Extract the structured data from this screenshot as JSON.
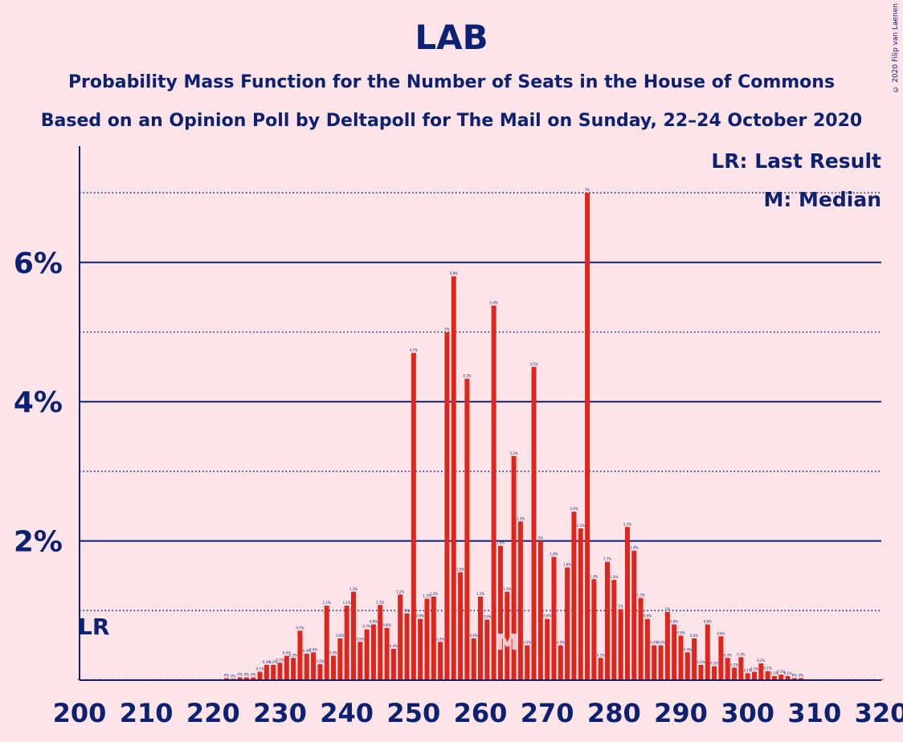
{
  "title": "LAB",
  "subtitle1": "Probability Mass Function for the Number of Seats in the House of Commons",
  "subtitle2": "Based on an Opinion Poll by Deltapoll for The Mail on Sunday, 22–24 October 2020",
  "copyright": "© 2020 Filip van Laenen",
  "legend": {
    "lr": "LR: Last Result",
    "median": "M: Median"
  },
  "colors": {
    "bar": "#e0261c",
    "axis": "#0d2173",
    "background": "#fde4e8",
    "median_mark": "#fbc7cc"
  },
  "chart_data": {
    "type": "bar",
    "xlim": [
      200,
      320
    ],
    "ylim": [
      0,
      7.6
    ],
    "x_ticks": [
      200,
      210,
      220,
      230,
      240,
      250,
      260,
      270,
      280,
      290,
      300,
      310,
      320
    ],
    "y_ticks_major": [
      2,
      4,
      6
    ],
    "y_ticks_major_labels": [
      "2%",
      "4%",
      "6%"
    ],
    "y_gridlines_minor": [
      1,
      3,
      5,
      7
    ],
    "last_result_seat": 202,
    "last_result_label": "LR",
    "median_seat": 264,
    "median_label": "M",
    "legend_position": "top-right",
    "x": [
      222,
      223,
      224,
      225,
      226,
      227,
      228,
      229,
      230,
      231,
      232,
      233,
      234,
      235,
      236,
      237,
      238,
      239,
      240,
      241,
      242,
      243,
      244,
      245,
      246,
      247,
      248,
      249,
      250,
      251,
      252,
      253,
      254,
      255,
      256,
      257,
      258,
      259,
      260,
      261,
      262,
      263,
      264,
      265,
      266,
      267,
      268,
      269,
      270,
      271,
      272,
      273,
      274,
      275,
      276,
      277,
      278,
      279,
      280,
      281,
      282,
      283,
      284,
      285,
      286,
      287,
      288,
      289,
      290,
      291,
      292,
      293,
      294,
      295,
      296,
      297,
      298,
      299,
      300,
      301,
      302,
      303,
      304,
      305,
      306,
      307,
      308
    ],
    "values": [
      0.03,
      0.02,
      0.04,
      0.04,
      0.04,
      0.12,
      0.22,
      0.22,
      0.25,
      0.35,
      0.32,
      0.71,
      0.38,
      0.4,
      0.23,
      1.07,
      0.35,
      0.6,
      1.07,
      1.27,
      0.55,
      0.73,
      0.8,
      1.08,
      0.75,
      0.45,
      1.23,
      0.96,
      4.7,
      0.88,
      1.17,
      1.2,
      0.55,
      5.0,
      5.8,
      1.55,
      4.33,
      0.6,
      1.2,
      0.87,
      5.38,
      1.93,
      1.27,
      3.22,
      2.28,
      0.5,
      4.5,
      2.0,
      0.88,
      1.77,
      0.5,
      1.62,
      2.42,
      2.18,
      7.0,
      1.45,
      0.32,
      1.7,
      1.44,
      1.02,
      2.2,
      1.86,
      1.18,
      0.88,
      0.5,
      0.5,
      0.98,
      0.8,
      0.64,
      0.4,
      0.6,
      0.22,
      0.8,
      0.2,
      0.63,
      0.32,
      0.18,
      0.33,
      0.1,
      0.12,
      0.24,
      0.13,
      0.06,
      0.08,
      0.06,
      0.03,
      0.03
    ],
    "data_labels": [
      "0%",
      "0%",
      "0%",
      "0%",
      "0%",
      "0.1%",
      "0.2%",
      "0.2%",
      "0.2%",
      "0.4%",
      "0.3%",
      "0.7%",
      "0.4%",
      "0.4%",
      "0.2%",
      "1.1%",
      "0.3%",
      "0.6%",
      "1.1%",
      "1.3%",
      "0.5%",
      "0.7%",
      "0.8%",
      "1.1%",
      "0.8%",
      "0.4%",
      "1.2%",
      "1%",
      "4.7%",
      "0.9%",
      "1.2%",
      "1.2%",
      "0.5%",
      "5%",
      "5.8%",
      "1.5%",
      "4.3%",
      "0.6%",
      "1.2%",
      "0.9%",
      "5.4%",
      "1.9%",
      "1.3%",
      "3.2%",
      "2.3%",
      "0.5%",
      "4.5%",
      "2%",
      "0.9%",
      "1.8%",
      "0.5%",
      "1.6%",
      "2.4%",
      "2.2%",
      "7%",
      "1.4%",
      "0.3%",
      "1.7%",
      "1.4%",
      "1%",
      "2.2%",
      "1.9%",
      "1.2%",
      "0.9%",
      "0.5%",
      "0.5%",
      "1%",
      "0.8%",
      "0.6%",
      "0.4%",
      "0.6%",
      "0.2%",
      "0.8%",
      "0.2%",
      "0.6%",
      "0.3%",
      "0.2%",
      "0.3%",
      "0.1%",
      "0.1%",
      "0.2%",
      "0.1%",
      "0.1%",
      "0.1%",
      "0.1%",
      "0%",
      "0%"
    ]
  }
}
